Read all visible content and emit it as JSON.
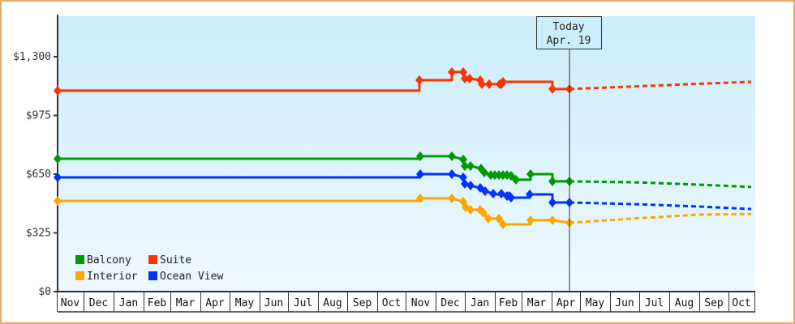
{
  "chart_data": {
    "type": "line",
    "title": "",
    "xlabel": "",
    "ylabel": "",
    "ylim": [
      0,
      1450
    ],
    "y_ticks": [
      {
        "value": 0,
        "label": "$0"
      },
      {
        "value": 325,
        "label": "$325"
      },
      {
        "value": 650,
        "label": "$650"
      },
      {
        "value": 975,
        "label": "$975"
      },
      {
        "value": 1300,
        "label": "$1,300"
      }
    ],
    "x_months": [
      "Nov",
      "Dec",
      "Jan",
      "Feb",
      "Mar",
      "Apr",
      "May",
      "Jun",
      "Jul",
      "Aug",
      "Sep",
      "Oct",
      "Nov",
      "Dec",
      "Jan",
      "Feb",
      "Mar",
      "Apr",
      "May",
      "Jun",
      "Jul",
      "Aug",
      "Sep",
      "Oct"
    ],
    "today_marker": {
      "line1": "Today",
      "line2": "Apr. 19"
    },
    "grid": false,
    "legend_position": "lower-left",
    "series": [
      {
        "name": "Balcony",
        "color": "#009900",
        "historical": [
          [
            71,
            735
          ],
          [
            518,
            735
          ],
          [
            518,
            749
          ],
          [
            557,
            749
          ],
          [
            571,
            731
          ],
          [
            573,
            695
          ],
          [
            580,
            695
          ],
          [
            593,
            681
          ],
          [
            597,
            659
          ],
          [
            605,
            645
          ],
          [
            630,
            641
          ],
          [
            636,
            619
          ],
          [
            654,
            619
          ],
          [
            654,
            650
          ],
          [
            681,
            650
          ],
          [
            681,
            610
          ],
          [
            702,
            610
          ]
        ],
        "markers": [
          71,
          518,
          557,
          571,
          573,
          580,
          593,
          597,
          605,
          610,
          615,
          620,
          625,
          630,
          636,
          654,
          681,
          702
        ],
        "forecast": [
          [
            702,
            610
          ],
          [
            780,
            605
          ],
          [
            860,
            592
          ],
          [
            926,
            579
          ]
        ]
      },
      {
        "name": "Suite",
        "color": "#ff3300",
        "historical": [
          [
            71,
            1112
          ],
          [
            517,
            1112
          ],
          [
            517,
            1170
          ],
          [
            557,
            1170
          ],
          [
            557,
            1215
          ],
          [
            571,
            1215
          ],
          [
            573,
            1179
          ],
          [
            579,
            1179
          ],
          [
            592,
            1170
          ],
          [
            594,
            1148
          ],
          [
            616,
            1148
          ],
          [
            620,
            1161
          ],
          [
            681,
            1161
          ],
          [
            681,
            1121
          ],
          [
            702,
            1121
          ]
        ],
        "markers": [
          71,
          517,
          557,
          571,
          573,
          579,
          592,
          594,
          603,
          616,
          618,
          620,
          681,
          702
        ],
        "forecast": [
          [
            702,
            1121
          ],
          [
            780,
            1135
          ],
          [
            860,
            1150
          ],
          [
            926,
            1161
          ]
        ]
      },
      {
        "name": "Interior",
        "color": "#ffa500",
        "historical": [
          [
            71,
            502
          ],
          [
            518,
            502
          ],
          [
            518,
            516
          ],
          [
            557,
            516
          ],
          [
            571,
            498
          ],
          [
            574,
            466
          ],
          [
            580,
            453
          ],
          [
            592,
            453
          ],
          [
            596,
            435
          ],
          [
            602,
            404
          ],
          [
            615,
            404
          ],
          [
            620,
            372
          ],
          [
            654,
            372
          ],
          [
            654,
            395
          ],
          [
            681,
            395
          ],
          [
            702,
            381
          ]
        ],
        "markers": [
          71,
          518,
          557,
          571,
          574,
          580,
          592,
          596,
          602,
          615,
          620,
          654,
          681,
          702
        ],
        "forecast": [
          [
            702,
            381
          ],
          [
            780,
            404
          ],
          [
            860,
            426
          ],
          [
            926,
            430
          ]
        ]
      },
      {
        "name": "Ocean View",
        "color": "#0033ff",
        "historical": [
          [
            71,
            632
          ],
          [
            518,
            632
          ],
          [
            518,
            650
          ],
          [
            557,
            650
          ],
          [
            571,
            632
          ],
          [
            573,
            596
          ],
          [
            580,
            587
          ],
          [
            592,
            574
          ],
          [
            598,
            556
          ],
          [
            608,
            542
          ],
          [
            625,
            529
          ],
          [
            630,
            520
          ],
          [
            653,
            520
          ],
          [
            653,
            538
          ],
          [
            681,
            538
          ],
          [
            681,
            493
          ],
          [
            702,
            493
          ]
        ],
        "markers": [
          71,
          518,
          557,
          571,
          573,
          580,
          592,
          598,
          608,
          618,
          625,
          628,
          630,
          653,
          681,
          702
        ],
        "forecast": [
          [
            702,
            493
          ],
          [
            780,
            484
          ],
          [
            860,
            471
          ],
          [
            926,
            457
          ]
        ]
      }
    ]
  },
  "legend": [
    {
      "label": "Balcony",
      "color": "#009900"
    },
    {
      "label": "Suite",
      "color": "#ff3300"
    },
    {
      "label": "Interior",
      "color": "#ffa500"
    },
    {
      "label": "Ocean View",
      "color": "#0033ff"
    }
  ]
}
